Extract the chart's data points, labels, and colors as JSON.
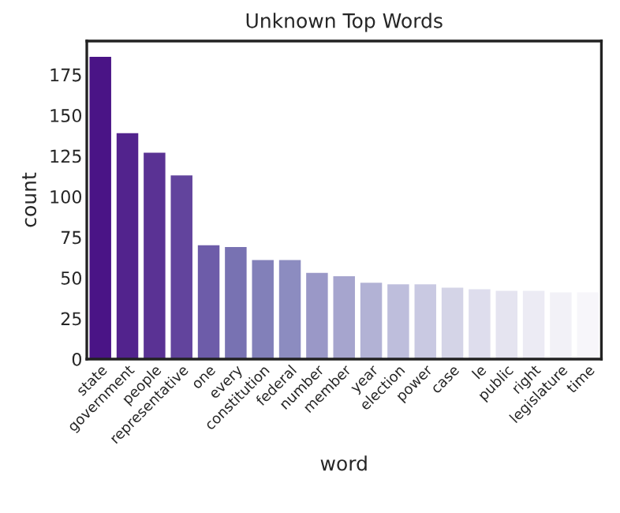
{
  "chart_data": {
    "type": "bar",
    "title": "Unknown Top Words",
    "xlabel": "word",
    "ylabel": "count",
    "categories": [
      "state",
      "government",
      "people",
      "representative",
      "one",
      "every",
      "constitution",
      "federal",
      "number",
      "member",
      "year",
      "election",
      "power",
      "case",
      "le",
      "public",
      "right",
      "legislature",
      "time"
    ],
    "values": [
      186,
      139,
      127,
      113,
      70,
      69,
      61,
      61,
      53,
      51,
      47,
      46,
      46,
      44,
      43,
      42,
      42,
      41,
      41
    ],
    "colors": [
      "#4a1486",
      "#52238d",
      "#5a3294",
      "#62449d",
      "#6d5ca9",
      "#7872b2",
      "#8280b9",
      "#8c8cc0",
      "#9a98c7",
      "#a6a5ce",
      "#b2b2d5",
      "#bebedc",
      "#c9c9e2",
      "#d4d4e7",
      "#dedded",
      "#e5e4f0",
      "#ecebf4",
      "#f2f1f7",
      "#f7f6fa"
    ],
    "ylim": [
      0,
      195.7
    ],
    "yticks": [
      0,
      25,
      50,
      75,
      100,
      125,
      150,
      175
    ],
    "grid": false,
    "legend": false
  }
}
